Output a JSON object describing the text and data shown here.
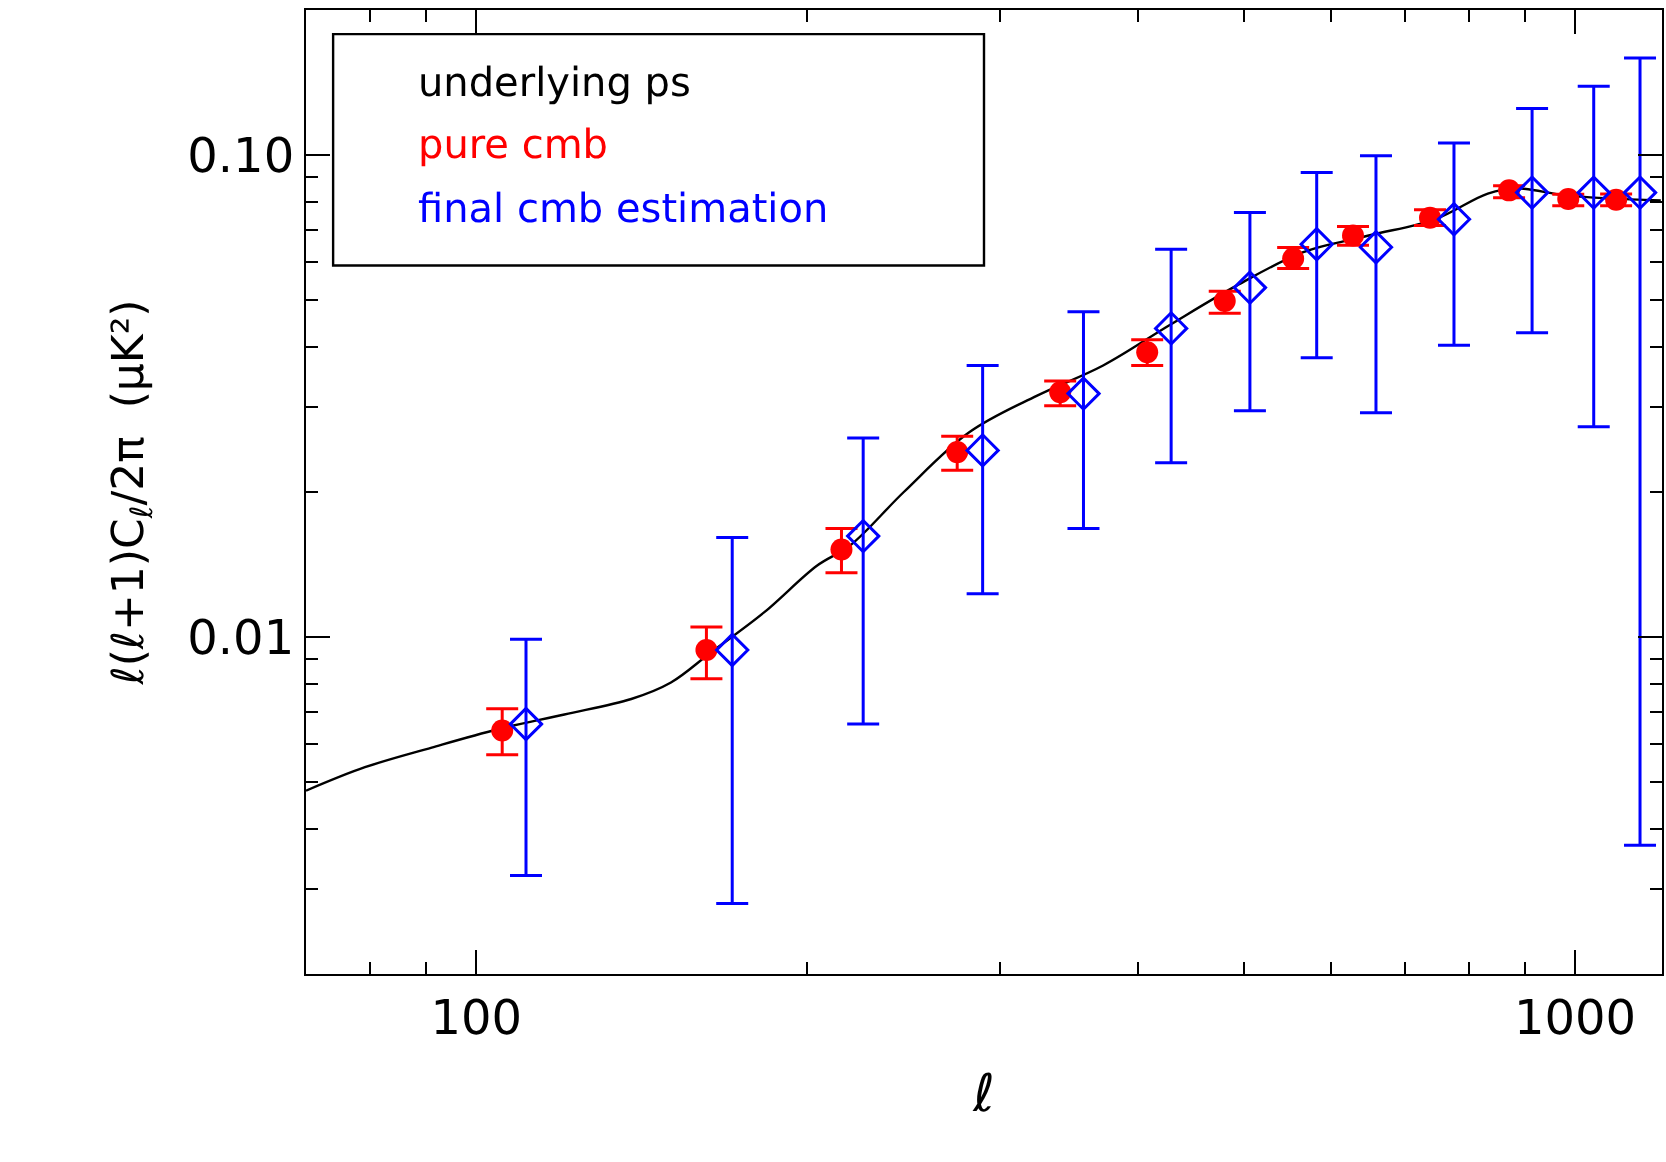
{
  "chart_data": {
    "type": "line",
    "xlabel": "ℓ",
    "ylabel": "ℓ(ℓ+1)C$_{ℓ}$/2π  (μK²)",
    "log": "xy",
    "legend": "top left",
    "xlim": [
      70,
      1200
    ],
    "ylim": [
      0.002,
      0.2
    ],
    "xticks": [
      {
        "value": 70,
        "label": null
      },
      {
        "value": 80,
        "label": null
      },
      {
        "value": 90,
        "label": null
      },
      100,
      {
        "value": 200,
        "label": null
      },
      {
        "value": 300,
        "label": null
      },
      {
        "value": 400,
        "label": null
      },
      {
        "value": 500,
        "label": null
      },
      {
        "value": 600,
        "label": null
      },
      {
        "value": 700,
        "label": null
      },
      {
        "value": 800,
        "label": null
      },
      {
        "value": 900,
        "label": null
      },
      1000
    ],
    "yticks": [
      {
        "value": 0.002,
        "label": null
      },
      {
        "value": 0.003,
        "label": null
      },
      {
        "value": 0.004,
        "label": null
      },
      {
        "value": 0.005,
        "label": null
      },
      {
        "value": 0.006,
        "label": null
      },
      {
        "value": 0.007,
        "label": null
      },
      {
        "value": 0.008,
        "label": null
      },
      {
        "value": 0.009,
        "label": null
      },
      0.01,
      {
        "value": 0.02,
        "label": null
      },
      {
        "value": 0.03,
        "label": null
      },
      {
        "value": 0.04,
        "label": null
      },
      {
        "value": 0.05,
        "label": null
      },
      {
        "value": 0.06,
        "label": null
      },
      {
        "value": 0.07,
        "label": null
      },
      {
        "value": 0.08,
        "label": null
      },
      {
        "value": 0.09,
        "label": null
      },
      {
        "value": 0.1,
        "label": "0.10"
      },
      {
        "value": 0.2,
        "label": null
      }
    ],
    "series": [
      {
        "name": "underlying ps",
        "color": "#000000",
        "marker": "none",
        "line_style": "solid",
        "x": [
          70,
          79.2,
          91.1,
          104.7,
          120.3,
          138.4,
          150.4,
          163.5,
          182.8,
          204.2,
          219,
          245,
          281,
          324,
          372,
          427,
          492,
          565,
          649,
          746,
          833,
          885,
          986,
          1197
        ],
        "values": [
          0.0048,
          0.00537,
          0.0059,
          0.00644,
          0.00691,
          0.00744,
          0.00805,
          0.00929,
          0.01125,
          0.01406,
          0.0155,
          0.02,
          0.0266,
          0.0317,
          0.0366,
          0.0443,
          0.0536,
          0.0628,
          0.0681,
          0.0736,
          0.0832,
          0.0853,
          0.0824,
          0.0805
        ]
      },
      {
        "name": "pure cmb",
        "type": "scatter",
        "color": "#ff0000",
        "marker": "circle",
        "x": [
          105.6,
          162,
          215,
          274,
          340,
          408,
          480,
          554,
          628,
          738,
          871,
          986,
          1090
        ],
        "values": [
          0.0064,
          0.0094,
          0.0152,
          0.0242,
          0.0322,
          0.039,
          0.0498,
          0.061,
          0.0681,
          0.0741,
          0.0845,
          0.0811,
          0.0808
        ],
        "errors": [
          [
            0.0057,
            0.0071
          ],
          [
            0.0082,
            0.0105
          ],
          [
            0.0136,
            0.0168
          ],
          [
            0.0222,
            0.0261
          ],
          [
            0.0302,
            0.034
          ],
          [
            0.0366,
            0.0414
          ],
          [
            0.047,
            0.0522
          ],
          [
            0.0582,
            0.0643
          ],
          [
            0.065,
            0.0711
          ],
          [
            0.0714,
            0.077
          ],
          [
            0.0816,
            0.0864
          ],
          [
            0.0785,
            0.0829
          ],
          [
            0.0785,
            0.083
          ]
        ]
      },
      {
        "name": "final cmb estimation",
        "type": "scatter",
        "color": "#0000ff",
        "marker": "diamond-open",
        "x": [
          111,
          171,
          225,
          289,
          357,
          429,
          506,
          582,
          659,
          776,
          914,
          1040,
          1146
        ],
        "values": [
          0.0066,
          0.0094,
          0.0162,
          0.0244,
          0.032,
          0.0437,
          0.0531,
          0.0653,
          0.0644,
          0.0736,
          0.0836,
          0.0836,
          0.0836
        ],
        "errors": [
          [
            0.0032,
            0.0099
          ],
          [
            0.0028,
            0.0161
          ],
          [
            0.0066,
            0.0259
          ],
          [
            0.0123,
            0.0366
          ],
          [
            0.0168,
            0.0473
          ],
          [
            0.023,
            0.0638
          ],
          [
            0.0295,
            0.076
          ],
          [
            0.038,
            0.092
          ],
          [
            0.0292,
            0.0997
          ],
          [
            0.0403,
            0.106
          ],
          [
            0.0428,
            0.125
          ],
          [
            0.0273,
            0.139
          ],
          [
            0.0037,
            0.159
          ]
        ]
      }
    ]
  }
}
